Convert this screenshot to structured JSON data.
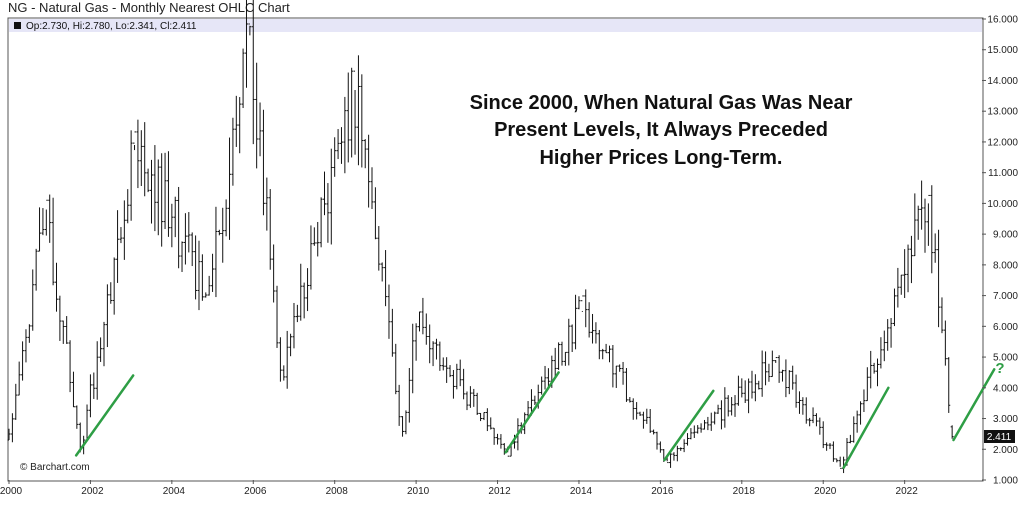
{
  "title": "NG - Natural Gas - Monthly Nearest OHLC Chart",
  "ohlc_readout": "Op:2.730, Hi:2.780, Lo:2.341, Cl:2.411",
  "annotation": {
    "lines": [
      "Since 2000, When Natural Gas Was Near",
      "Present Levels, It Always Preceded",
      "Higher Prices Long-Term."
    ]
  },
  "credit": "© Barchart.com",
  "last_price_label": "2.411",
  "question_mark": "?",
  "colors": {
    "bars": "#111111",
    "trend": "#2e9e45",
    "readout_band": "#e6e6f7",
    "last_label_bg": "#111111",
    "axis": "#555555"
  },
  "chart_data": {
    "type": "ohlc",
    "title": "NG - Natural Gas - Monthly Nearest OHLC Chart",
    "xlim": [
      2000.0,
      2023.9
    ],
    "ylim": [
      1.0,
      16.0
    ],
    "x_ticks": [
      "2000",
      "2002",
      "2004",
      "2006",
      "2008",
      "2010",
      "2012",
      "2014",
      "2016",
      "2018",
      "2020",
      "2022"
    ],
    "y_ticks": [
      "1.000",
      "2.000",
      "3.000",
      "4.000",
      "5.000",
      "6.000",
      "7.000",
      "8.000",
      "9.000",
      "10.000",
      "11.000",
      "12.000",
      "13.000",
      "14.000",
      "15.000",
      "16.000"
    ],
    "grid": false,
    "last_bar": {
      "open": 2.73,
      "high": 2.78,
      "low": 2.341,
      "close": 2.411
    },
    "key_points": [
      {
        "date": "2000-01",
        "price": 2.3
      },
      {
        "date": "2000-12",
        "price": 9.8
      },
      {
        "date": "2001-10",
        "price": 1.9
      },
      {
        "date": "2003-02",
        "price": 11.9
      },
      {
        "date": "2004-12",
        "price": 7.0
      },
      {
        "date": "2005-12",
        "price": 15.78
      },
      {
        "date": "2006-09",
        "price": 4.2
      },
      {
        "date": "2008-07",
        "price": 13.69
      },
      {
        "date": "2009-09",
        "price": 2.41
      },
      {
        "date": "2010-01",
        "price": 6.1
      },
      {
        "date": "2012-04",
        "price": 1.9
      },
      {
        "date": "2014-02",
        "price": 6.5
      },
      {
        "date": "2016-03",
        "price": 1.61
      },
      {
        "date": "2018-11",
        "price": 4.9
      },
      {
        "date": "2020-06",
        "price": 1.43
      },
      {
        "date": "2022-08",
        "price": 10.0
      },
      {
        "date": "2023-03",
        "price": 2.341
      }
    ],
    "trend_segments": [
      {
        "x1": 2001.65,
        "y1": 1.8,
        "x2": 2003.05,
        "y2": 4.4
      },
      {
        "x1": 2012.2,
        "y1": 1.9,
        "x2": 2013.5,
        "y2": 4.5
      },
      {
        "x1": 2016.1,
        "y1": 1.65,
        "x2": 2017.3,
        "y2": 3.9
      },
      {
        "x1": 2020.5,
        "y1": 1.4,
        "x2": 2021.6,
        "y2": 4.0
      },
      {
        "x1": 2023.2,
        "y1": 2.3,
        "x2": 2024.2,
        "y2": 4.6
      }
    ]
  }
}
